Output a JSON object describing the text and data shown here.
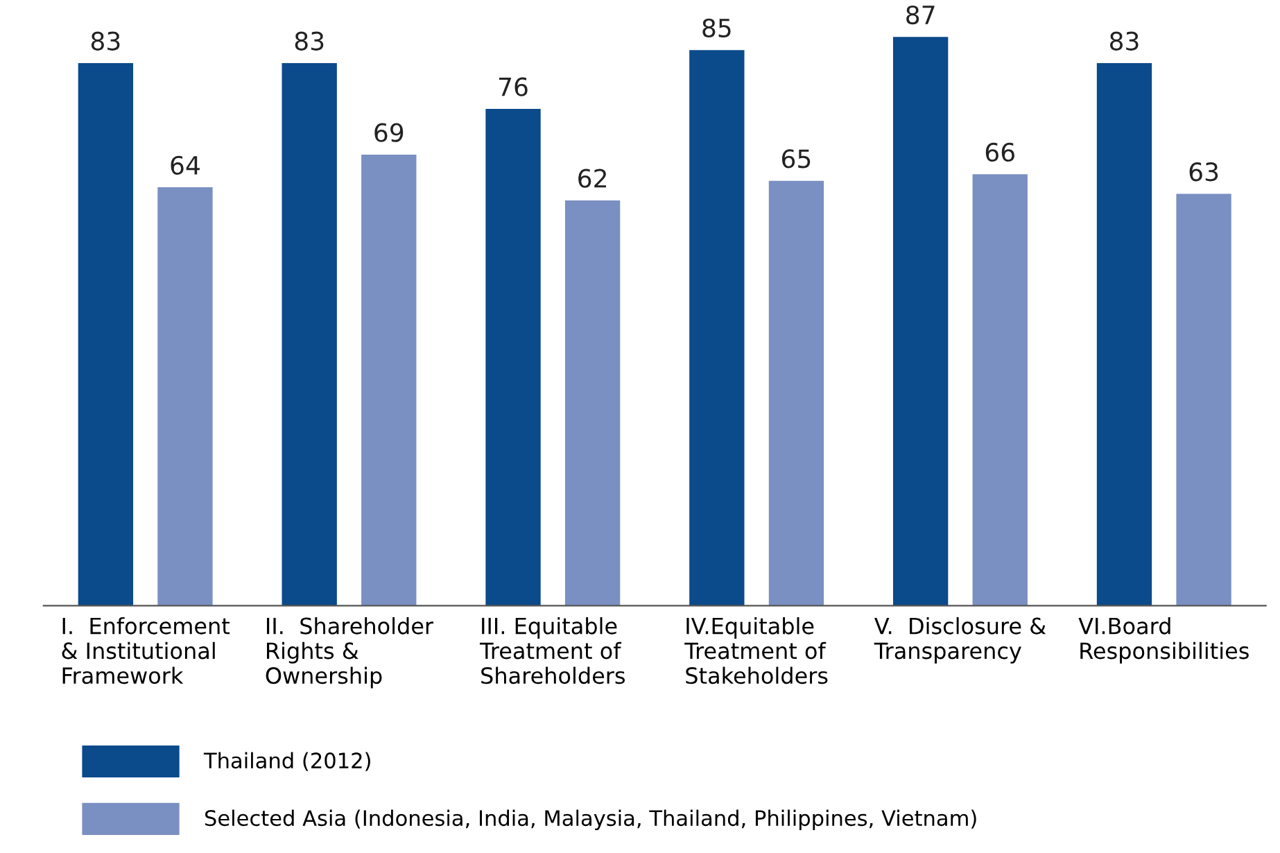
{
  "chart_data": {
    "type": "bar",
    "categories": [
      "I.  Enforcement\n& Institutional\nFramework",
      "II.  Shareholder\nRights &\nOwnership",
      "III. Equitable\nTreatment of\nShareholders",
      "IV.Equitable\nTreatment of\nStakeholders",
      "V.  Disclosure &\nTransparency",
      "VI.Board\nResponsibilities"
    ],
    "series": [
      {
        "name": "Thailand (2012)",
        "color": "#0b4a8b",
        "values": [
          83,
          83,
          76,
          85,
          87,
          83
        ]
      },
      {
        "name": "Selected Asia (Indonesia, India, Malaysia, Thailand, Philippines, Vietnam)",
        "color": "#7a8fc2",
        "values": [
          64,
          69,
          62,
          65,
          66,
          63
        ]
      }
    ],
    "data_labels": true,
    "grid": false,
    "legend": "bottom left",
    "tick_labels": "x"
  }
}
